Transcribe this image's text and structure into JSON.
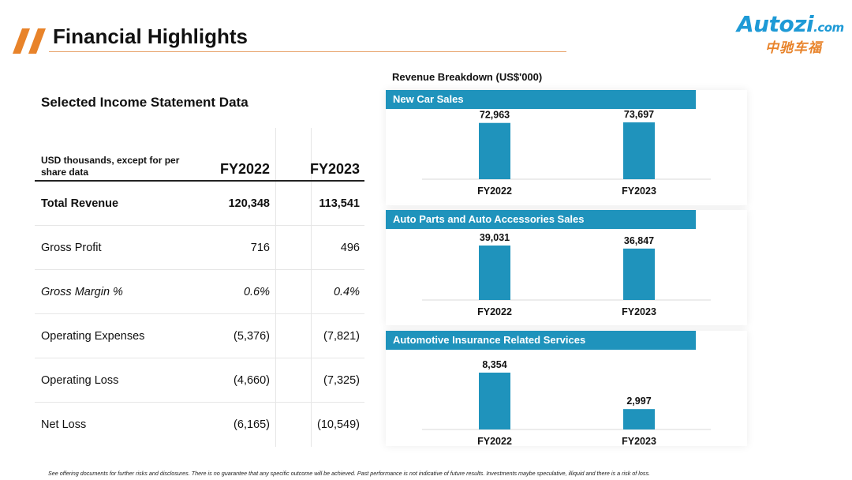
{
  "header": {
    "title": "Financial Highlights"
  },
  "logo": {
    "text": "Autozi",
    "suffix": ".com",
    "chinese": "中驰车福"
  },
  "colors": {
    "accent": "#e8832a",
    "bar": "#1f93bc",
    "brand_blue": "#1e9ad6"
  },
  "table": {
    "section_title": "Selected Income Statement Data",
    "header_label": "USD thousands, except for per share data",
    "columns": [
      "FY2022",
      "FY2023"
    ],
    "rows": [
      {
        "label": "Total Revenue",
        "values": [
          "120,348",
          "113,541"
        ],
        "style": "bold"
      },
      {
        "label": "Gross Profit",
        "values": [
          "716",
          "496"
        ],
        "style": "normal"
      },
      {
        "label": "Gross Margin %",
        "values": [
          "0.6%",
          "0.4%"
        ],
        "style": "italic"
      },
      {
        "label": "Operating Expenses",
        "values": [
          "(5,376)",
          "(7,821)"
        ],
        "style": "normal"
      },
      {
        "label": "Operating Loss",
        "values": [
          "(4,660)",
          "(7,325)"
        ],
        "style": "normal"
      },
      {
        "label": "Net Loss",
        "values": [
          "(6,165)",
          "(10,549)"
        ],
        "style": "normal"
      }
    ]
  },
  "revenue_title": "Revenue Breakdown (US$'000)",
  "chart_data": [
    {
      "type": "bar",
      "title": "New Car Sales",
      "categories": [
        "FY2022",
        "FY2023"
      ],
      "values": [
        72963,
        73697
      ],
      "labels": [
        "72,963",
        "73,697"
      ]
    },
    {
      "type": "bar",
      "title": "Auto Parts and Auto Accessories Sales",
      "categories": [
        "FY2022",
        "FY2023"
      ],
      "values": [
        39031,
        36847
      ],
      "labels": [
        "39,031",
        "36,847"
      ]
    },
    {
      "type": "bar",
      "title": "Automotive Insurance Related Services",
      "categories": [
        "FY2022",
        "FY2023"
      ],
      "values": [
        8354,
        2997
      ],
      "labels": [
        "8,354",
        "2,997"
      ]
    }
  ],
  "footer": "See offering documents for further risks and disclosures. There is no guarantee that any specific outcome will be achieved. Past performance is not indicative of future results. Investments maybe speculative, illiquid and there is a risk of loss."
}
